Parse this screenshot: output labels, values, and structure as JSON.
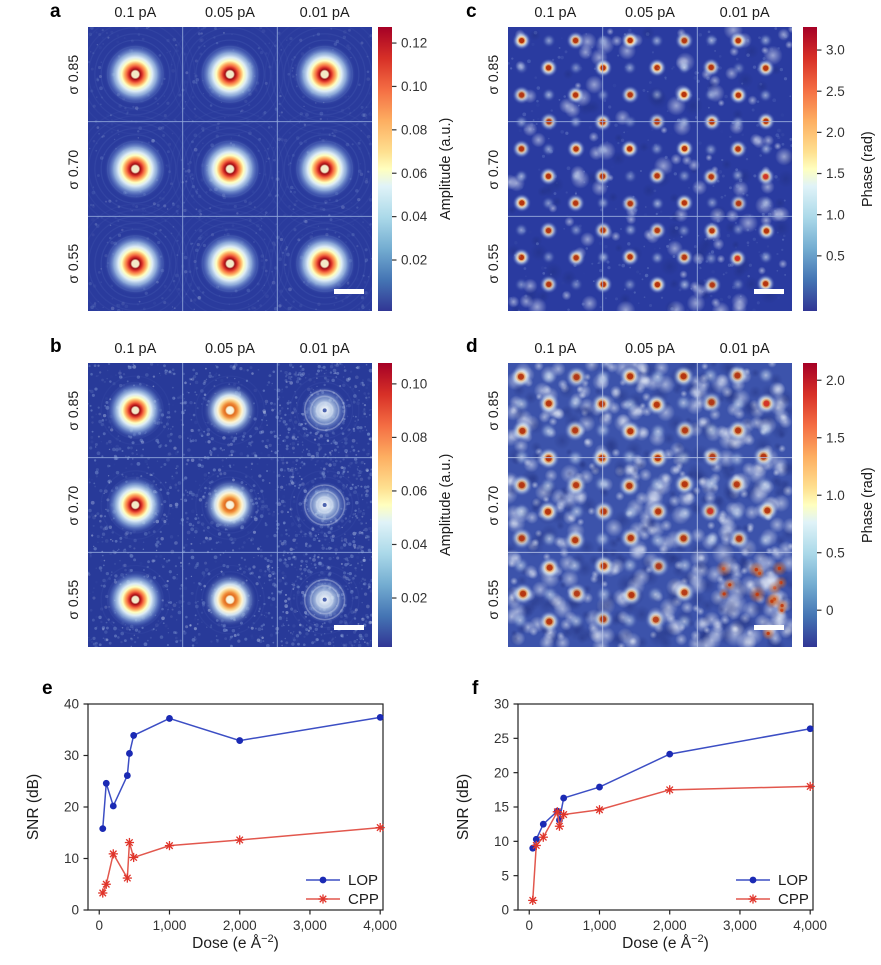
{
  "figure": {
    "background": "#ffffff"
  },
  "panels": {
    "a": {
      "letter": "a",
      "type": "amplitude",
      "col_labels": [
        "0.1 pA",
        "0.05 pA",
        "0.01 pA"
      ],
      "row_labels": [
        "σ 0.85",
        "σ 0.70",
        "σ 0.55"
      ],
      "colorbar": {
        "label": "Amplitude (a.u.)",
        "tick_labels": [
          "0.02",
          "0.04",
          "0.06",
          "0.08",
          "0.10",
          "0.12"
        ],
        "tick_values": [
          0.02,
          0.04,
          0.06,
          0.08,
          0.1,
          0.12
        ],
        "vmin": -0.0035,
        "vmax": 0.1274
      },
      "scalebar": true
    },
    "b": {
      "letter": "b",
      "type": "amplitude",
      "col_labels": [
        "0.1 pA",
        "0.05 pA",
        "0.01 pA"
      ],
      "row_labels": [
        "σ 0.85",
        "σ 0.70",
        "σ 0.55"
      ],
      "colorbar": {
        "label": "Amplitude (a.u.)",
        "tick_labels": [
          "0.02",
          "0.04",
          "0.06",
          "0.08",
          "0.10"
        ],
        "tick_values": [
          0.02,
          0.04,
          0.06,
          0.08,
          0.1
        ],
        "vmin": 0.0017,
        "vmax": 0.1078
      },
      "scalebar": true
    },
    "c": {
      "letter": "c",
      "type": "phase",
      "col_labels": [
        "0.1 pA",
        "0.05 pA",
        "0.01 pA"
      ],
      "row_labels": [
        "σ 0.85",
        "σ 0.70",
        "σ 0.55"
      ],
      "colorbar": {
        "label": "Phase (rad)",
        "tick_labels": [
          "0.5",
          "1.0",
          "1.5",
          "2.0",
          "2.5",
          "3.0"
        ],
        "tick_values": [
          0.5,
          1.0,
          1.5,
          2.0,
          2.5,
          3.0
        ],
        "vmin": -0.17,
        "vmax": 3.28
      },
      "scalebar": true
    },
    "d": {
      "letter": "d",
      "type": "phase",
      "col_labels": [
        "0.1 pA",
        "0.05 pA",
        "0.01 pA"
      ],
      "row_labels": [
        "σ 0.85",
        "σ 0.70",
        "σ 0.55"
      ],
      "colorbar": {
        "label": "Phase (rad)",
        "tick_labels": [
          "0",
          "0.5",
          "1.0",
          "1.5",
          "2.0"
        ],
        "tick_values": [
          0,
          0.5,
          1.0,
          1.5,
          2.0
        ],
        "vmin": -0.32,
        "vmax": 2.15
      },
      "scalebar": true
    }
  },
  "chart_data": [
    {
      "id": "e",
      "panel_letter": "e",
      "type": "line",
      "xlabel": "Dose (e Å⁻²)",
      "xlabel_parts": {
        "pre": "Dose (e Å",
        "sup": "−2",
        "post": ")"
      },
      "ylabel": "SNR (dB)",
      "xlim": [
        -160,
        4040
      ],
      "ylim": [
        0,
        40
      ],
      "grid": false,
      "xtick_values": [
        0,
        1000,
        2000,
        3000,
        4000
      ],
      "xtick_labels": [
        "0",
        "1,000",
        "2,000",
        "3,000",
        "4,000"
      ],
      "ytick_values": [
        0,
        10,
        20,
        30,
        40
      ],
      "ytick_labels": [
        "0",
        "10",
        "20",
        "30",
        "40"
      ],
      "x": [
        50,
        100,
        200,
        400,
        430,
        490,
        1000,
        2000,
        4000
      ],
      "series": [
        {
          "name": "LOP",
          "marker": "circle",
          "values": [
            15.8,
            24.6,
            20.2,
            26.1,
            30.4,
            33.9,
            37.2,
            32.9,
            37.4
          ]
        },
        {
          "name": "CPP",
          "marker": "asterisk",
          "values": [
            3.3,
            5.0,
            10.9,
            6.2,
            13.1,
            10.2,
            12.5,
            13.6,
            16.0
          ]
        }
      ],
      "legend_position": "lower right"
    },
    {
      "id": "f",
      "panel_letter": "f",
      "type": "line",
      "xlabel": "Dose (e Å⁻²)",
      "xlabel_parts": {
        "pre": "Dose (e Å",
        "sup": "−2",
        "post": ")"
      },
      "ylabel": "SNR (dB)",
      "xlim": [
        -160,
        4040
      ],
      "ylim": [
        0,
        30
      ],
      "grid": false,
      "xtick_values": [
        0,
        1000,
        2000,
        3000,
        4000
      ],
      "xtick_labels": [
        "0",
        "1,000",
        "2,000",
        "3,000",
        "4,000"
      ],
      "ytick_values": [
        0,
        5,
        10,
        15,
        20,
        25,
        30
      ],
      "ytick_labels": [
        "0",
        "5",
        "10",
        "15",
        "20",
        "25",
        "30"
      ],
      "x": [
        50,
        100,
        200,
        400,
        430,
        490,
        1000,
        2000,
        4000
      ],
      "series": [
        {
          "name": "LOP",
          "marker": "circle",
          "values": [
            9.0,
            10.3,
            12.5,
            14.4,
            13.1,
            16.3,
            17.9,
            22.7,
            26.4
          ]
        },
        {
          "name": "CPP",
          "marker": "asterisk",
          "values": [
            1.4,
            9.4,
            10.6,
            14.3,
            12.2,
            13.9,
            14.6,
            17.5,
            18.0
          ]
        }
      ],
      "legend_position": "lower right"
    }
  ],
  "colors": {
    "lop_line": "#3c4ec4",
    "lop_marker": "#1b2ab4",
    "cpp_line": "#e2574d",
    "cpp_marker": "#e0352b",
    "colormap_low": "#313695",
    "colormap_mid": "#ffffbf",
    "colormap_high": "#a50026",
    "axis_text": "#333333"
  }
}
